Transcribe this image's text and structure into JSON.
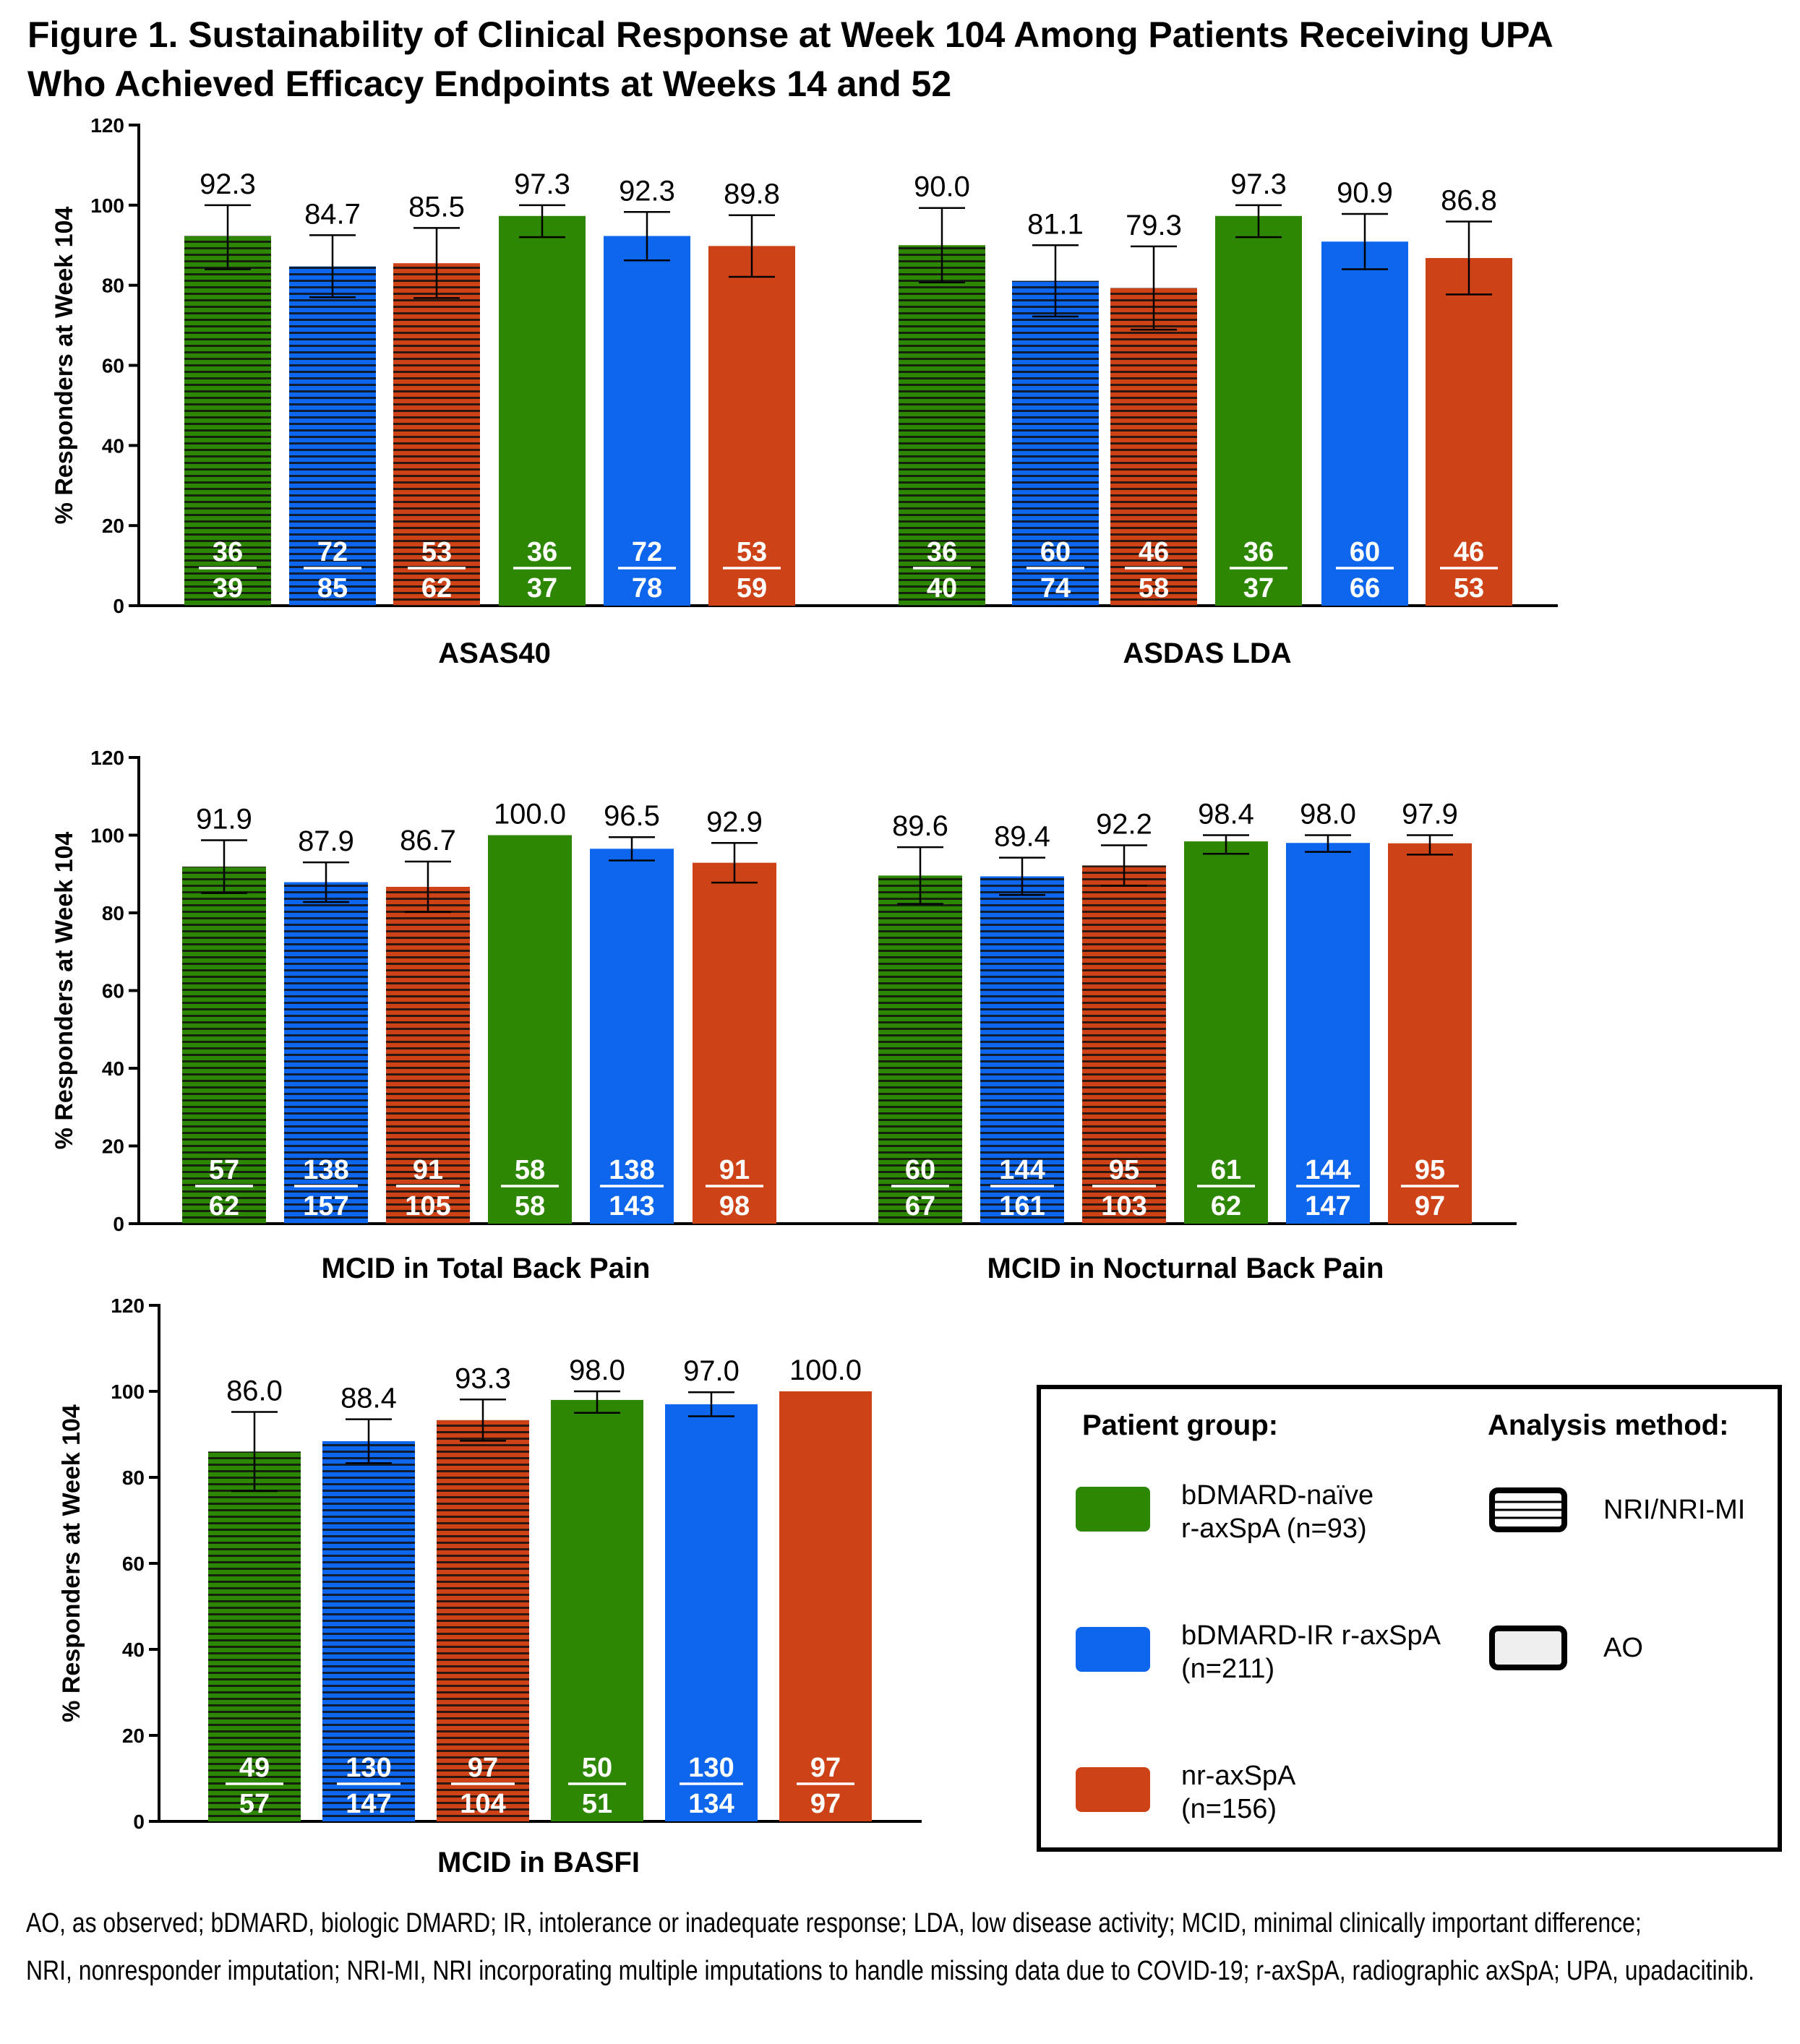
{
  "title_lines": [
    "Figure 1. Sustainability of Clinical Response at Week 104 Among Patients Receiving UPA",
    "Who Achieved Efficacy Endpoints at Weeks 14 and 52"
  ],
  "chart_data": [
    {
      "type": "bar",
      "ylabel": "% Responders at Week 104",
      "ylim": [
        0,
        120
      ],
      "yticks": [
        "0",
        "20",
        "40",
        "60",
        "80",
        "100",
        "120"
      ],
      "groups": [
        {
          "label": "ASAS40",
          "bars": [
            {
              "value": "92.3",
              "lo": 84.0,
              "hi": 100.0,
              "num": "36",
              "den": "39",
              "series": "naive",
              "method": "NRI"
            },
            {
              "value": "84.7",
              "lo": 77.0,
              "hi": 92.5,
              "num": "72",
              "den": "85",
              "series": "ir",
              "method": "NRI"
            },
            {
              "value": "85.5",
              "lo": 76.8,
              "hi": 94.3,
              "num": "53",
              "den": "62",
              "series": "nr",
              "method": "NRI"
            },
            {
              "value": "97.3",
              "lo": 92.0,
              "hi": 100.0,
              "num": "36",
              "den": "37",
              "series": "naive",
              "method": "AO"
            },
            {
              "value": "92.3",
              "lo": 86.2,
              "hi": 98.3,
              "num": "72",
              "den": "78",
              "series": "ir",
              "method": "AO"
            },
            {
              "value": "89.8",
              "lo": 82.1,
              "hi": 97.5,
              "num": "53",
              "den": "59",
              "series": "nr",
              "method": "AO"
            }
          ]
        },
        {
          "label": "ASDAS LDA",
          "bars": [
            {
              "value": "90.0",
              "lo": 80.7,
              "hi": 99.3,
              "num": "36",
              "den": "40",
              "series": "naive",
              "method": "NRI"
            },
            {
              "value": "81.1",
              "lo": 72.2,
              "hi": 90.0,
              "num": "60",
              "den": "74",
              "series": "ir",
              "method": "NRI"
            },
            {
              "value": "79.3",
              "lo": 68.9,
              "hi": 89.7,
              "num": "46",
              "den": "58",
              "series": "nr",
              "method": "NRI"
            },
            {
              "value": "97.3",
              "lo": 92.0,
              "hi": 100.0,
              "num": "36",
              "den": "37",
              "series": "naive",
              "method": "AO"
            },
            {
              "value": "90.9",
              "lo": 84.0,
              "hi": 97.8,
              "num": "60",
              "den": "66",
              "series": "ir",
              "method": "AO"
            },
            {
              "value": "86.8",
              "lo": 77.7,
              "hi": 95.9,
              "num": "46",
              "den": "53",
              "series": "nr",
              "method": "AO"
            }
          ]
        }
      ]
    },
    {
      "type": "bar",
      "ylabel": "% Responders at Week 104",
      "ylim": [
        0,
        120
      ],
      "yticks": [
        "0",
        "20",
        "40",
        "60",
        "80",
        "100",
        "120"
      ],
      "groups": [
        {
          "label": "MCID in Total Back Pain",
          "bars": [
            {
              "value": "91.9",
              "lo": 85.1,
              "hi": 98.7,
              "num": "57",
              "den": "62",
              "series": "naive",
              "method": "NRI"
            },
            {
              "value": "87.9",
              "lo": 82.8,
              "hi": 93.0,
              "num": "138",
              "den": "157",
              "series": "ir",
              "method": "NRI"
            },
            {
              "value": "86.7",
              "lo": 80.2,
              "hi": 93.2,
              "num": "91",
              "den": "105",
              "series": "nr",
              "method": "NRI"
            },
            {
              "value": "100.0",
              "lo": 100.0,
              "hi": 100.0,
              "num": "58",
              "den": "58",
              "series": "naive",
              "method": "AO"
            },
            {
              "value": "96.5",
              "lo": 93.5,
              "hi": 99.5,
              "num": "138",
              "den": "143",
              "series": "ir",
              "method": "AO"
            },
            {
              "value": "92.9",
              "lo": 87.8,
              "hi": 98.0,
              "num": "91",
              "den": "98",
              "series": "nr",
              "method": "AO"
            }
          ]
        },
        {
          "label": "MCID in Nocturnal Back Pain",
          "bars": [
            {
              "value": "89.6",
              "lo": 82.3,
              "hi": 96.9,
              "num": "60",
              "den": "67",
              "series": "naive",
              "method": "NRI"
            },
            {
              "value": "89.4",
              "lo": 84.6,
              "hi": 94.2,
              "num": "144",
              "den": "161",
              "series": "ir",
              "method": "NRI"
            },
            {
              "value": "92.2",
              "lo": 87.0,
              "hi": 97.4,
              "num": "95",
              "den": "103",
              "series": "nr",
              "method": "NRI"
            },
            {
              "value": "98.4",
              "lo": 95.2,
              "hi": 100.0,
              "num": "61",
              "den": "62",
              "series": "naive",
              "method": "AO"
            },
            {
              "value": "98.0",
              "lo": 95.7,
              "hi": 100.0,
              "num": "144",
              "den": "147",
              "series": "ir",
              "method": "AO"
            },
            {
              "value": "97.9",
              "lo": 95.0,
              "hi": 100.0,
              "num": "95",
              "den": "97",
              "series": "nr",
              "method": "AO"
            }
          ]
        }
      ]
    },
    {
      "type": "bar",
      "ylabel": "% Responders at Week 104",
      "ylim": [
        0,
        120
      ],
      "yticks": [
        "0",
        "20",
        "40",
        "60",
        "80",
        "100",
        "120"
      ],
      "groups": [
        {
          "label": "MCID in BASFI",
          "bars": [
            {
              "value": "86.0",
              "lo": 76.8,
              "hi": 95.2,
              "num": "49",
              "den": "57",
              "series": "naive",
              "method": "NRI"
            },
            {
              "value": "88.4",
              "lo": 83.3,
              "hi": 93.5,
              "num": "130",
              "den": "147",
              "series": "ir",
              "method": "NRI"
            },
            {
              "value": "93.3",
              "lo": 88.5,
              "hi": 98.1,
              "num": "97",
              "den": "104",
              "series": "nr",
              "method": "NRI"
            },
            {
              "value": "98.0",
              "lo": 95.0,
              "hi": 100.0,
              "num": "50",
              "den": "51",
              "series": "naive",
              "method": "AO"
            },
            {
              "value": "97.0",
              "lo": 94.2,
              "hi": 99.8,
              "num": "130",
              "den": "134",
              "series": "ir",
              "method": "AO"
            },
            {
              "value": "100.0",
              "lo": 100.0,
              "hi": 100.0,
              "num": "97",
              "den": "97",
              "series": "nr",
              "method": "AO"
            }
          ]
        }
      ]
    }
  ],
  "series_colors": {
    "naive": "#2e8703",
    "ir": "#0e66ec",
    "nr": "#cd4317"
  },
  "legend": {
    "patient_group_title": "Patient group:",
    "analysis_method_title": "Analysis method:",
    "groups": [
      {
        "key": "naive",
        "lines": [
          "bDMARD-naïve",
          "r-axSpA (n=93)"
        ]
      },
      {
        "key": "ir",
        "lines": [
          "bDMARD-IR r-axSpA",
          "(n=211)"
        ]
      },
      {
        "key": "nr",
        "lines": [
          "nr-axSpA",
          "(n=156)"
        ]
      }
    ],
    "methods": [
      {
        "key": "NRI",
        "label": "NRI/NRI-MI"
      },
      {
        "key": "AO",
        "label": "AO"
      }
    ]
  },
  "footnote_lines": [
    "AO, as observed; bDMARD, biologic DMARD; IR, intolerance or inadequate response; LDA, low disease activity; MCID, minimal clinically important difference;",
    "NRI, nonresponder imputation; NRI-MI, NRI incorporating multiple imputations to handle missing data due to COVID-19; r-axSpA, radiographic axSpA; UPA, upadacitinib."
  ]
}
